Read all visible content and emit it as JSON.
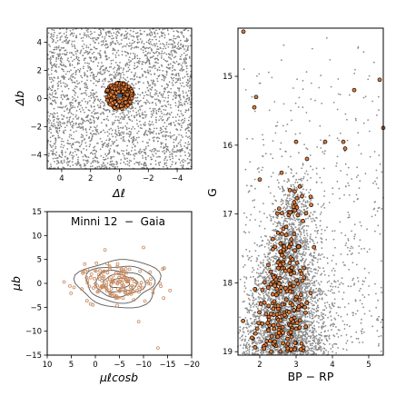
{
  "chart_data": [
    {
      "type": "scatter",
      "panel": "sky",
      "xlabel": "Δℓ",
      "ylabel": "Δb",
      "xlim": [
        5,
        -5
      ],
      "ylim": [
        -5,
        5
      ],
      "xticks": [
        "4",
        "2",
        "0",
        "−2",
        "−4"
      ],
      "xtick_values": [
        4,
        2,
        0,
        -2,
        -4
      ],
      "yticks": [
        "−4",
        "−2",
        "0",
        "2",
        "4"
      ],
      "ytick_values": [
        -4,
        -2,
        0,
        2,
        4
      ],
      "field_color": "#808080",
      "member_face": "#e07b39",
      "member_edge": "#000000",
      "center_marker_color": "#2e6da4",
      "field_region": {
        "x": [
          -5,
          5
        ],
        "y": [
          -5,
          5
        ]
      },
      "cluster_center": [
        0.0,
        0.2
      ],
      "cluster_radius": 0.95
    },
    {
      "type": "scatter",
      "panel": "proper-motion",
      "title": "Minni 12  −  Gaia",
      "xlabel": "μℓcosb",
      "ylabel": "μb",
      "xlim": [
        10,
        -20
      ],
      "ylim": [
        -15,
        15
      ],
      "xticks": [
        "10",
        "5",
        "0",
        "−5",
        "−10",
        "−15",
        "−20"
      ],
      "xtick_values": [
        10,
        5,
        0,
        -5,
        -10,
        -15,
        -20
      ],
      "yticks": [
        "−15",
        "−10",
        "−5",
        "0",
        "5",
        "10",
        "15"
      ],
      "ytick_values": [
        -15,
        -10,
        -5,
        0,
        5,
        10,
        15
      ],
      "member_color": "#c98a5e",
      "contour_color": "#5a5a5a",
      "pm_center": [
        -5.0,
        0.0
      ],
      "contour_levels": [
        {
          "rx": 2.0,
          "ry": 1.0
        },
        {
          "rx": 3.5,
          "ry": 1.8
        },
        {
          "rx": 5.2,
          "ry": 2.7
        },
        {
          "rx": 7.0,
          "ry": 3.8
        },
        {
          "rx": 8.6,
          "ry": 5.0
        }
      ],
      "outliers": [
        [
          -13.0,
          -13.5
        ],
        [
          0.5,
          -4.5
        ],
        [
          -2.0,
          7.0
        ],
        [
          -10.0,
          7.5
        ],
        [
          -15.5,
          -1.5
        ],
        [
          -14.0,
          3.0
        ],
        [
          6.5,
          0.3
        ],
        [
          -9.0,
          -8.0
        ]
      ]
    },
    {
      "type": "scatter",
      "panel": "cmd",
      "xlabel": "BP − RP",
      "ylabel": "G",
      "xlim": [
        1.4,
        5.4
      ],
      "ylim": [
        19.05,
        14.3
      ],
      "xticks": [
        "2",
        "3",
        "4",
        "5"
      ],
      "xtick_values": [
        2,
        3,
        4,
        5
      ],
      "yticks": [
        "15",
        "16",
        "17",
        "18",
        "19"
      ],
      "ytick_values": [
        15,
        16,
        17,
        18,
        19
      ],
      "field_color": "#8c8c8c",
      "member_face": "#e07b39",
      "member_edge": "#000000",
      "bright_members": [
        [
          1.55,
          14.35
        ],
        [
          1.9,
          15.3
        ],
        [
          1.85,
          15.45
        ],
        [
          4.6,
          15.2
        ],
        [
          5.3,
          15.05
        ],
        [
          5.4,
          15.75
        ],
        [
          4.3,
          15.95
        ],
        [
          4.35,
          16.05
        ],
        [
          3.0,
          15.95
        ],
        [
          3.8,
          15.95
        ],
        [
          2.0,
          16.5
        ],
        [
          3.3,
          16.2
        ],
        [
          2.6,
          16.4
        ],
        [
          3.1,
          16.6
        ],
        [
          3.4,
          16.75
        ]
      ]
    }
  ]
}
